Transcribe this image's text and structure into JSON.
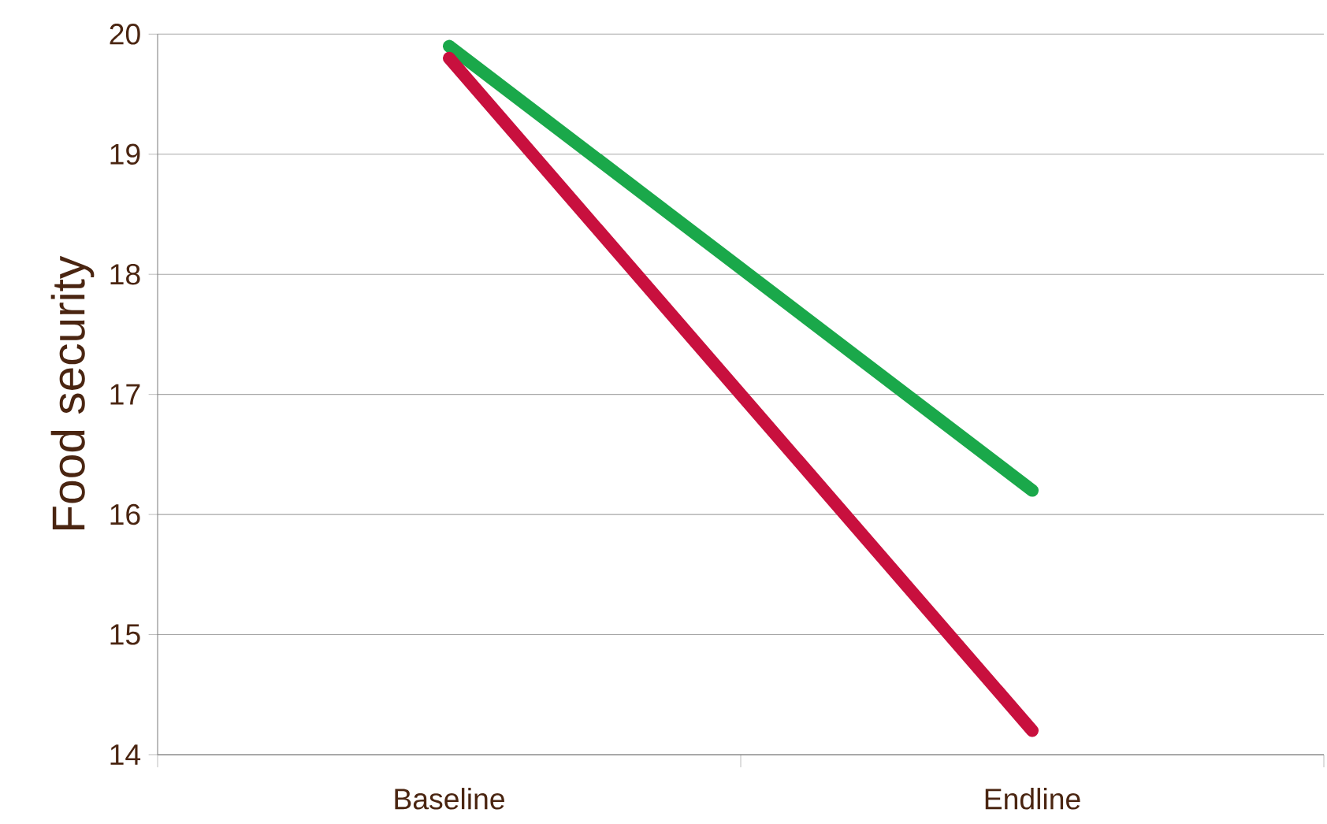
{
  "chart_data": {
    "type": "line",
    "ylabel": "Food security",
    "categories": [
      "Baseline",
      "Endline"
    ],
    "series": [
      {
        "color": "#1aa84a",
        "values": [
          19.9,
          16.2
        ]
      },
      {
        "color": "#c8103e",
        "values": [
          19.8,
          14.2
        ]
      }
    ],
    "ylim": [
      14,
      20
    ],
    "yticks": [
      14,
      15,
      16,
      17,
      18,
      19,
      20
    ],
    "grid": "y",
    "marker": "none",
    "line_style": "solid"
  }
}
